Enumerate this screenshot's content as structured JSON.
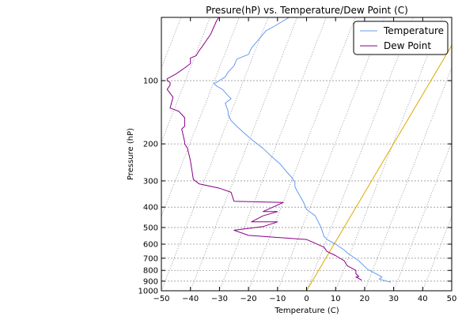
{
  "chart_data": {
    "type": "line",
    "title": "Presure(hP) vs. Temperature/Dew Point (C)",
    "xlabel": "Temperature (C)",
    "ylabel": "Pressure (hP)",
    "xlim": [
      -50,
      50
    ],
    "ylim": [
      1000,
      50
    ],
    "y_scale": "log",
    "x_ticks": [
      "−50",
      "−40",
      "−30",
      "−20",
      "−10",
      "0",
      "10",
      "20",
      "30",
      "40",
      "50"
    ],
    "x_tick_values": [
      -50,
      -40,
      -30,
      -20,
      -10,
      0,
      10,
      20,
      30,
      40,
      50
    ],
    "y_ticks": [
      "100",
      "200",
      "300",
      "400",
      "500",
      "600",
      "700",
      "800",
      "900",
      "1000"
    ],
    "y_tick_values": [
      100,
      200,
      300,
      400,
      500,
      600,
      700,
      800,
      900,
      1000
    ],
    "grid": true,
    "legend_position": "upper right",
    "colors": {
      "temperature": "#6699ee",
      "dew_point": "#880088",
      "reference_line": "#ddaa00",
      "skew_grid": "#888888",
      "grid": "#999999"
    },
    "series": [
      {
        "name": "Temperature",
        "x": [
          29,
          25,
          26,
          21,
          18,
          14,
          13,
          10,
          8,
          7,
          6,
          5,
          3,
          0,
          -1,
          -1,
          -3,
          -4,
          -4,
          -5,
          -6,
          -8,
          -9,
          -12,
          -15,
          -18,
          -19,
          -20,
          -22,
          -24,
          -26,
          -27,
          -27,
          -28,
          -26,
          -27,
          -29,
          -31,
          -32,
          -31,
          -28,
          -27,
          -25,
          -24,
          -20,
          -19,
          -14,
          -11,
          -6,
          -4,
          -3
        ],
        "y": [
          910,
          880,
          860,
          790,
          720,
          660,
          640,
          600,
          580,
          570,
          550,
          500,
          440,
          410,
          380,
          380,
          340,
          320,
          305,
          290,
          280,
          260,
          250,
          230,
          210,
          195,
          190,
          185,
          175,
          165,
          155,
          145,
          140,
          128,
          122,
          118,
          110,
          106,
          103,
          102,
          96,
          91,
          85,
          79,
          75,
          70,
          58,
          55,
          50,
          48,
          45
        ]
      },
      {
        "name": "Dew Point",
        "x": [
          19,
          17,
          18,
          17,
          17,
          14,
          13,
          10,
          7,
          6,
          0,
          -20,
          -25,
          -15,
          -10,
          -19,
          -15,
          -10,
          -15,
          -8,
          -25,
          -26,
          -30,
          -37,
          -39,
          -40,
          -41,
          -42,
          -42,
          -43,
          -42,
          -42,
          -44,
          -47,
          -46,
          -48,
          -47,
          -47,
          -48,
          -48,
          -45,
          -42,
          -40,
          -40,
          -40,
          -38,
          -37,
          -36,
          -33,
          -31,
          -28
        ],
        "y": [
          890,
          860,
          855,
          830,
          800,
          760,
          720,
          680,
          650,
          620,
          570,
          545,
          515,
          495,
          470,
          470,
          440,
          420,
          420,
          380,
          375,
          340,
          325,
          310,
          295,
          240,
          210,
          200,
          195,
          170,
          165,
          150,
          140,
          135,
          120,
          110,
          105,
          102,
          100,
          98,
          93,
          87,
          83,
          80,
          78,
          76,
          72,
          69,
          60,
          52,
          45
        ]
      }
    ]
  }
}
